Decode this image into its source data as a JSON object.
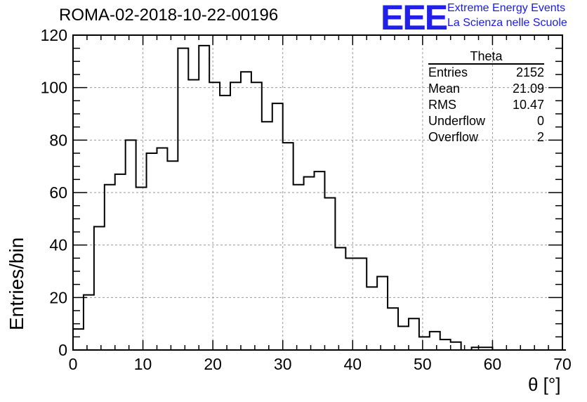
{
  "title": "ROMA-02-2018-10-22-00196",
  "logo": {
    "mark": "EEE",
    "line1": "Extreme Energy Events",
    "line2": "La Scienza nelle Scuole",
    "color": "#1a1ae6"
  },
  "stats_box": {
    "title": "Theta",
    "rows": [
      {
        "label": "Entries",
        "value": "2152"
      },
      {
        "label": "Mean",
        "value": "21.09"
      },
      {
        "label": "RMS",
        "value": "10.47"
      },
      {
        "label": "Underflow",
        "value": "0"
      },
      {
        "label": "Overflow",
        "value": "2"
      }
    ]
  },
  "chart_data": {
    "type": "bar",
    "style": "step-histogram",
    "title": "ROMA-02-2018-10-22-00196",
    "xlabel": "θ [°]",
    "ylabel": "Entries/bin",
    "xlim": [
      0,
      70
    ],
    "ylim": [
      0,
      120
    ],
    "x_ticks": [
      0,
      10,
      20,
      30,
      40,
      50,
      60,
      70
    ],
    "y_ticks": [
      0,
      20,
      40,
      60,
      80,
      100,
      120
    ],
    "grid": true,
    "bin_width": 1.5,
    "bin_edges_start": 0,
    "values": [
      8,
      21,
      47,
      63,
      67,
      80,
      62,
      75,
      77,
      72,
      115,
      103,
      116,
      102,
      97,
      102,
      106,
      102,
      87,
      94,
      79,
      63,
      66,
      68,
      58,
      39,
      35,
      35,
      24,
      28,
      16,
      9,
      12,
      5,
      7,
      4,
      3,
      0,
      1,
      1,
      0,
      0,
      0,
      0,
      0,
      0,
      0
    ]
  }
}
